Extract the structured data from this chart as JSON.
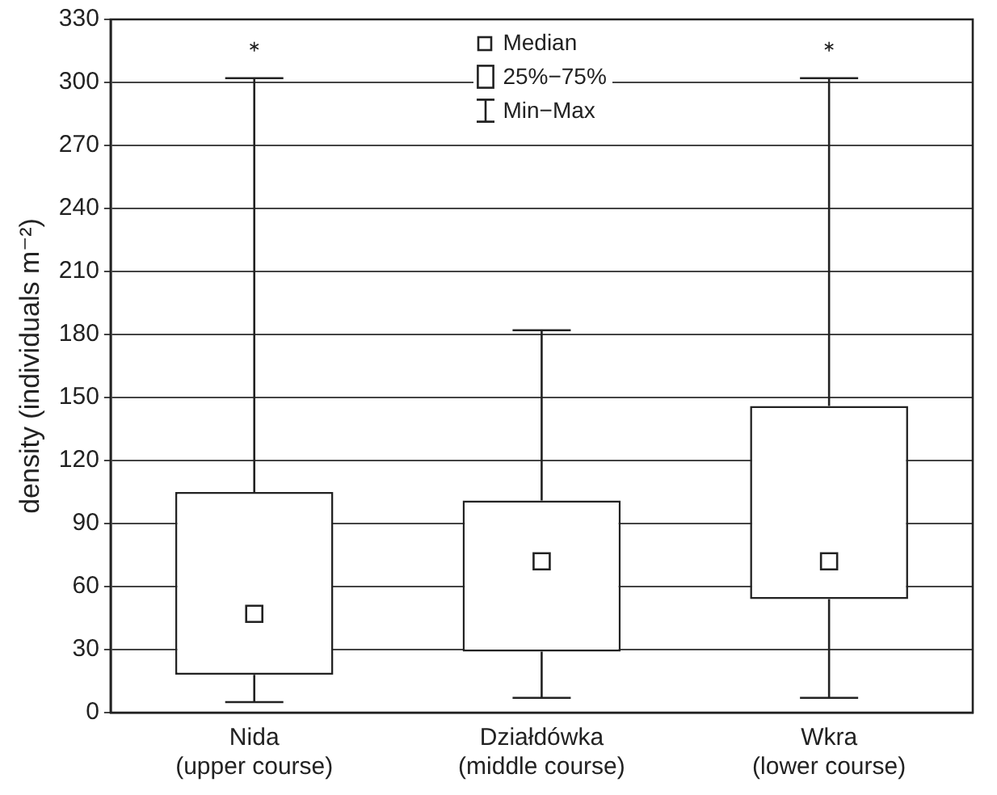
{
  "chart_data": {
    "type": "box",
    "ylabel": "density (individuals m⁻²)",
    "categories": [
      "Nida\n(upper course)",
      "Działdówka\n(middle course)",
      "Wkra\n(lower course)"
    ],
    "boxes": [
      {
        "low": 5,
        "q1": 18,
        "median": 47,
        "q3": 105,
        "high": 302,
        "outliers": [
          317
        ]
      },
      {
        "low": 7,
        "q1": 29,
        "median": 72,
        "q3": 101,
        "high": 182
      },
      {
        "low": 7,
        "q1": 54,
        "median": 72,
        "q3": 146,
        "high": 302,
        "outliers": [
          317
        ]
      }
    ],
    "color": "#222222",
    "ylim": [
      0,
      330
    ],
    "yticks": [
      0,
      30,
      60,
      90,
      120,
      150,
      180,
      210,
      240,
      270,
      300,
      330
    ],
    "grid": "y",
    "annotations": [
      "Median",
      "25%−75%",
      "Min−Max"
    ]
  }
}
